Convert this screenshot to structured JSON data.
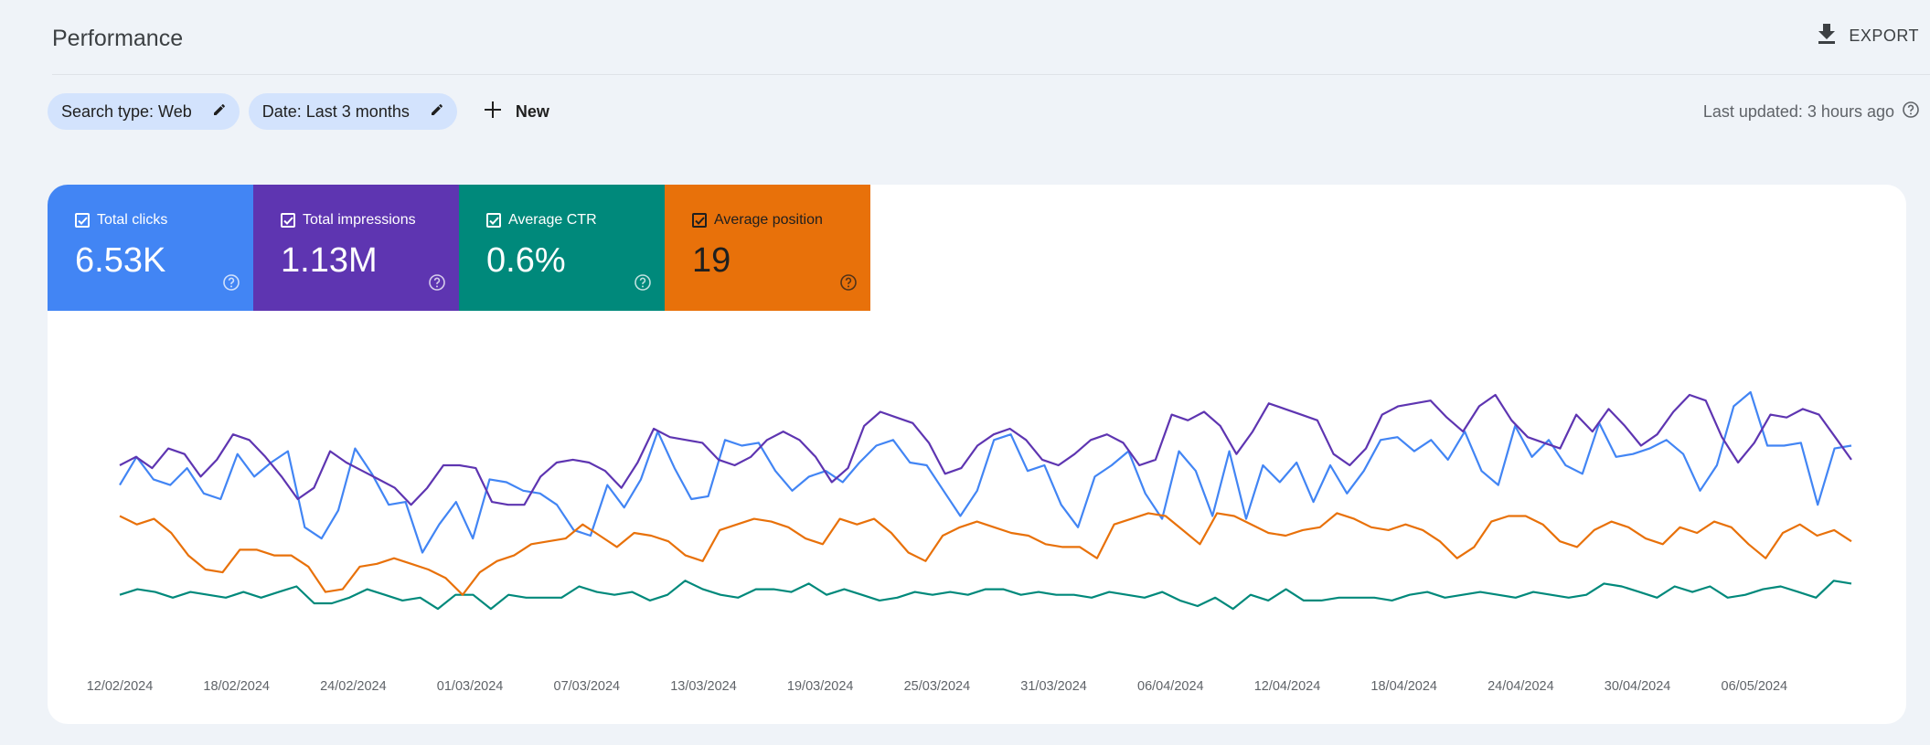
{
  "header": {
    "title": "Performance",
    "export_label": "EXPORT"
  },
  "filters": {
    "search_type": "Search type: Web",
    "date": "Date: Last 3 months",
    "new_label": "New"
  },
  "last_updated": "Last updated: 3 hours ago",
  "colors": {
    "clicks": "#4285f4",
    "impressions": "#5e35b1",
    "ctr": "#00897b",
    "position": "#e8710a"
  },
  "metrics": [
    {
      "label": "Total clicks",
      "value": "6.53K",
      "color": "#4285f4",
      "text_color": "#ffffff"
    },
    {
      "label": "Total impressions",
      "value": "1.13M",
      "color": "#5e35b1",
      "text_color": "#ffffff"
    },
    {
      "label": "Average CTR",
      "value": "0.6%",
      "color": "#00897b",
      "text_color": "#ffffff"
    },
    {
      "label": "Average position",
      "value": "19",
      "color": "#e8710a",
      "text_color": "#1f1f1f"
    }
  ],
  "chart_data": {
    "type": "line",
    "x_tick_labels": [
      "12/02/2024",
      "18/02/2024",
      "24/02/2024",
      "01/03/2024",
      "07/03/2024",
      "13/03/2024",
      "19/03/2024",
      "25/03/2024",
      "31/03/2024",
      "06/04/2024",
      "12/04/2024",
      "18/04/2024",
      "24/04/2024",
      "30/04/2024",
      "06/05/2024"
    ],
    "y_axis_visible": false,
    "grid": false,
    "normalized_scale": "each series scaled 0-100 to chart height (axes not shown)",
    "series": [
      {
        "name": "Total clicks",
        "color": "#4285f4",
        "values": [
          55,
          65,
          57,
          55,
          61,
          52,
          50,
          66,
          58,
          63,
          67,
          40,
          36,
          46,
          68,
          59,
          48,
          49,
          31,
          41,
          49,
          36,
          57,
          56,
          53,
          52,
          48,
          39,
          37,
          55,
          47,
          57,
          74,
          61,
          50,
          51,
          71,
          69,
          70,
          60,
          53,
          58,
          60,
          56,
          63,
          69,
          71,
          63,
          62,
          53,
          44,
          53,
          71,
          73,
          60,
          62,
          48,
          40,
          58,
          62,
          67,
          52,
          43,
          67,
          60,
          44,
          67,
          43,
          62,
          56,
          63,
          49,
          62,
          52,
          60,
          71,
          72,
          67,
          71,
          64,
          74,
          60,
          55,
          76,
          65,
          71,
          62,
          59,
          77,
          65,
          66,
          68,
          71,
          66,
          53,
          62,
          83,
          88,
          69,
          69,
          70,
          48,
          68,
          69
        ]
      },
      {
        "name": "Total impressions",
        "color": "#5e35b1",
        "values": [
          62,
          65,
          61,
          68,
          66,
          58,
          64,
          73,
          71,
          65,
          58,
          50,
          54,
          67,
          63,
          60,
          57,
          54,
          48,
          54,
          62,
          62,
          61,
          49,
          48,
          48,
          58,
          63,
          64,
          63,
          60,
          54,
          63,
          75,
          72,
          71,
          70,
          64,
          62,
          65,
          71,
          74,
          71,
          65,
          56,
          61,
          76,
          81,
          79,
          77,
          70,
          59,
          61,
          69,
          73,
          75,
          71,
          64,
          62,
          66,
          71,
          73,
          70,
          62,
          64,
          80,
          78,
          81,
          76,
          66,
          74,
          84,
          82,
          80,
          78,
          66,
          62,
          68,
          80,
          83,
          84,
          85,
          79,
          74,
          83,
          87,
          78,
          72,
          70,
          68,
          80,
          74,
          82,
          76,
          69,
          73,
          81,
          87,
          85,
          72,
          63,
          70,
          80,
          79,
          82,
          80,
          72,
          64
        ]
      },
      {
        "name": "Average CTR",
        "color": "#00897b",
        "values": [
          16,
          18,
          17,
          15,
          17,
          16,
          15,
          17,
          15,
          17,
          19,
          13,
          13,
          15,
          18,
          16,
          14,
          15,
          11,
          16,
          16,
          11,
          16,
          15,
          15,
          15,
          19,
          17,
          16,
          17,
          14,
          16,
          21,
          18,
          16,
          15,
          18,
          18,
          17,
          20,
          16,
          18,
          16,
          14,
          15,
          17,
          16,
          17,
          16,
          18,
          18,
          16,
          17,
          16,
          16,
          15,
          17,
          16,
          15,
          17,
          14,
          12,
          15,
          11,
          16,
          14,
          18,
          14,
          14,
          15,
          15,
          15,
          14,
          16,
          17,
          15,
          16,
          17,
          16,
          15,
          17,
          16,
          15,
          16,
          20,
          19,
          17,
          15,
          19,
          17,
          19,
          15,
          16,
          18,
          19,
          17,
          15,
          21,
          20
        ]
      },
      {
        "name": "Average position",
        "color": "#e8710a",
        "values": [
          44,
          41,
          43,
          38,
          30,
          25,
          24,
          32,
          32,
          30,
          30,
          26,
          17,
          18,
          26,
          27,
          29,
          27,
          25,
          22,
          16,
          24,
          28,
          30,
          34,
          35,
          36,
          41,
          37,
          33,
          38,
          37,
          35,
          30,
          28,
          39,
          41,
          43,
          42,
          40,
          36,
          34,
          43,
          41,
          43,
          38,
          31,
          28,
          37,
          40,
          42,
          40,
          38,
          37,
          34,
          33,
          33,
          29,
          41,
          43,
          45,
          44,
          39,
          34,
          45,
          44,
          41,
          38,
          37,
          39,
          40,
          45,
          43,
          40,
          39,
          41,
          39,
          35,
          29,
          33,
          42,
          44,
          44,
          41,
          35,
          33,
          39,
          42,
          40,
          36,
          34,
          40,
          38,
          42,
          40,
          34,
          29,
          38,
          41,
          37,
          39,
          35
        ]
      }
    ]
  }
}
